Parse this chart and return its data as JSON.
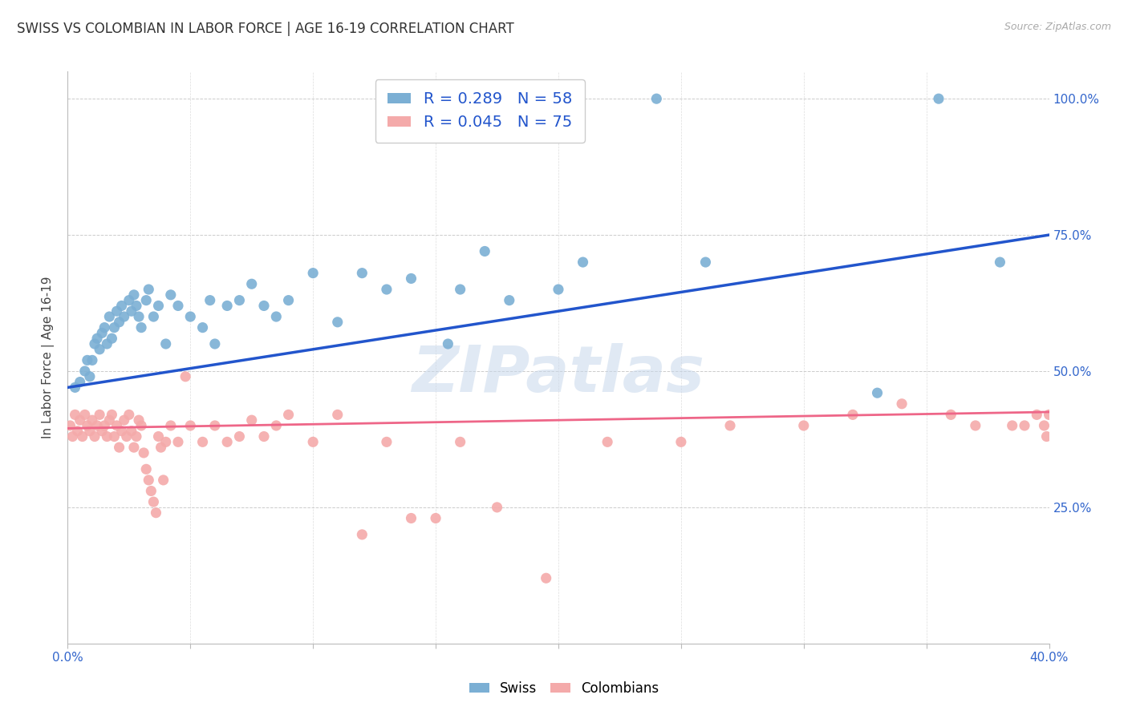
{
  "title": "SWISS VS COLOMBIAN IN LABOR FORCE | AGE 16-19 CORRELATION CHART",
  "source": "Source: ZipAtlas.com",
  "ylabel": "In Labor Force | Age 16-19",
  "x_min": 0.0,
  "x_max": 0.4,
  "y_min": 0.0,
  "y_max": 1.05,
  "x_ticks": [
    0.0,
    0.05,
    0.1,
    0.15,
    0.2,
    0.25,
    0.3,
    0.35,
    0.4
  ],
  "y_tick_positions": [
    0.25,
    0.5,
    0.75,
    1.0
  ],
  "y_tick_labels": [
    "25.0%",
    "50.0%",
    "75.0%",
    "100.0%"
  ],
  "swiss_R": 0.289,
  "swiss_N": 58,
  "colombian_R": 0.045,
  "colombian_N": 75,
  "swiss_color": "#7BAFD4",
  "colombian_color": "#F4AAAA",
  "swiss_line_color": "#2255CC",
  "colombian_line_color": "#EE6688",
  "watermark": "ZIPatlas",
  "swiss_x": [
    0.003,
    0.005,
    0.007,
    0.008,
    0.009,
    0.01,
    0.011,
    0.012,
    0.013,
    0.014,
    0.015,
    0.016,
    0.017,
    0.018,
    0.019,
    0.02,
    0.021,
    0.022,
    0.023,
    0.025,
    0.026,
    0.027,
    0.028,
    0.029,
    0.03,
    0.032,
    0.033,
    0.035,
    0.037,
    0.04,
    0.042,
    0.045,
    0.05,
    0.055,
    0.058,
    0.06,
    0.065,
    0.07,
    0.075,
    0.08,
    0.085,
    0.09,
    0.1,
    0.11,
    0.12,
    0.13,
    0.14,
    0.155,
    0.16,
    0.17,
    0.18,
    0.2,
    0.21,
    0.24,
    0.26,
    0.33,
    0.355,
    0.38
  ],
  "swiss_y": [
    0.47,
    0.48,
    0.5,
    0.52,
    0.49,
    0.52,
    0.55,
    0.56,
    0.54,
    0.57,
    0.58,
    0.55,
    0.6,
    0.56,
    0.58,
    0.61,
    0.59,
    0.62,
    0.6,
    0.63,
    0.61,
    0.64,
    0.62,
    0.6,
    0.58,
    0.63,
    0.65,
    0.6,
    0.62,
    0.55,
    0.64,
    0.62,
    0.6,
    0.58,
    0.63,
    0.55,
    0.62,
    0.63,
    0.66,
    0.62,
    0.6,
    0.63,
    0.68,
    0.59,
    0.68,
    0.65,
    0.67,
    0.55,
    0.65,
    0.72,
    0.63,
    0.65,
    0.7,
    1.0,
    0.7,
    0.46,
    1.0,
    0.7
  ],
  "colombian_x": [
    0.001,
    0.002,
    0.003,
    0.004,
    0.005,
    0.006,
    0.007,
    0.008,
    0.009,
    0.01,
    0.011,
    0.012,
    0.013,
    0.014,
    0.015,
    0.016,
    0.017,
    0.018,
    0.019,
    0.02,
    0.021,
    0.022,
    0.023,
    0.024,
    0.025,
    0.026,
    0.027,
    0.028,
    0.029,
    0.03,
    0.031,
    0.032,
    0.033,
    0.034,
    0.035,
    0.036,
    0.037,
    0.038,
    0.039,
    0.04,
    0.042,
    0.045,
    0.048,
    0.05,
    0.055,
    0.06,
    0.065,
    0.07,
    0.075,
    0.08,
    0.085,
    0.09,
    0.1,
    0.11,
    0.12,
    0.13,
    0.14,
    0.15,
    0.16,
    0.175,
    0.195,
    0.22,
    0.25,
    0.27,
    0.3,
    0.32,
    0.34,
    0.36,
    0.37,
    0.385,
    0.39,
    0.395,
    0.398,
    0.399,
    0.4
  ],
  "colombian_y": [
    0.4,
    0.38,
    0.42,
    0.39,
    0.41,
    0.38,
    0.42,
    0.4,
    0.39,
    0.41,
    0.38,
    0.4,
    0.42,
    0.39,
    0.4,
    0.38,
    0.41,
    0.42,
    0.38,
    0.4,
    0.36,
    0.39,
    0.41,
    0.38,
    0.42,
    0.39,
    0.36,
    0.38,
    0.41,
    0.4,
    0.35,
    0.32,
    0.3,
    0.28,
    0.26,
    0.24,
    0.38,
    0.36,
    0.3,
    0.37,
    0.4,
    0.37,
    0.49,
    0.4,
    0.37,
    0.4,
    0.37,
    0.38,
    0.41,
    0.38,
    0.4,
    0.42,
    0.37,
    0.42,
    0.2,
    0.37,
    0.23,
    0.23,
    0.37,
    0.25,
    0.12,
    0.37,
    0.37,
    0.4,
    0.4,
    0.42,
    0.44,
    0.42,
    0.4,
    0.4,
    0.4,
    0.42,
    0.4,
    0.38,
    0.42
  ]
}
